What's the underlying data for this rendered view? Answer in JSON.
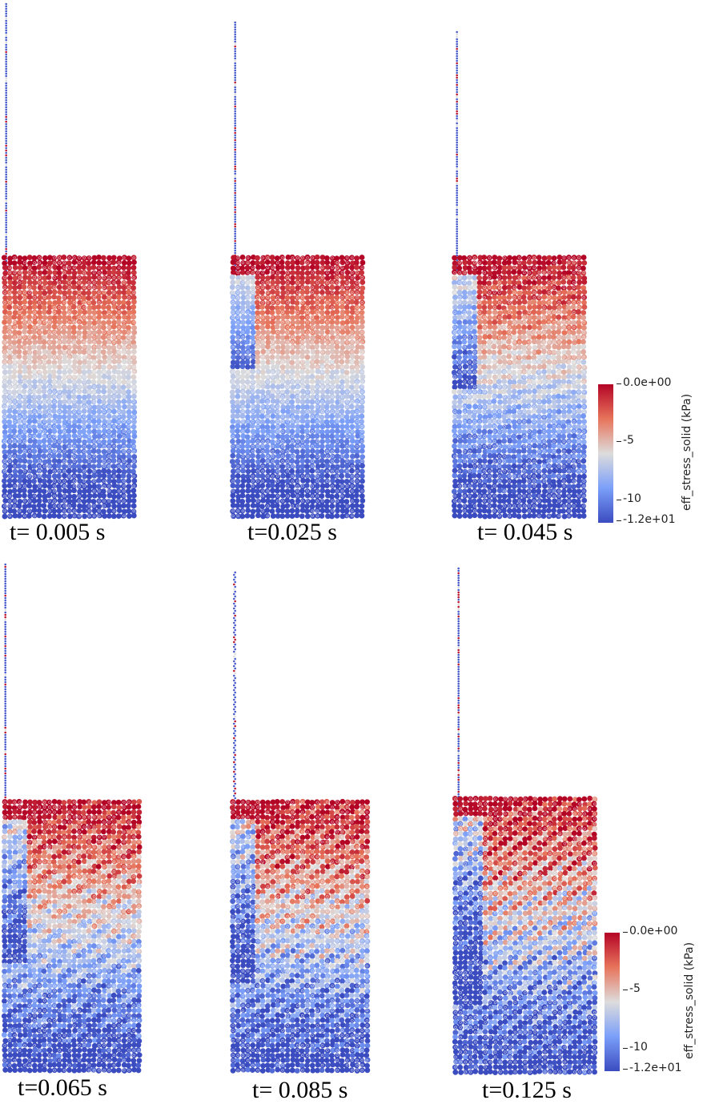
{
  "panels": [
    {
      "time_label": "t= 0.005 s",
      "stage": 0
    },
    {
      "time_label": "t=0.025 s",
      "stage": 1
    },
    {
      "time_label": "t= 0.045 s",
      "stage": 2
    },
    {
      "time_label": "t=0.065 s",
      "stage": 3
    },
    {
      "time_label": "t= 0.085 s",
      "stage": 4
    },
    {
      "time_label": "t=0.125 s",
      "stage": 5
    }
  ],
  "colorbar": {
    "title": "eff_stress_solid (kPa)",
    "max_label": "0.0e+00",
    "mid_label": "-5",
    "low_label": "-10",
    "min_label": "-1.2e+01",
    "range": [
      -12,
      0
    ],
    "colormap": [
      "#3b4cc0",
      "#7b9ff9",
      "#dddcdc",
      "#e7745b",
      "#b40426"
    ]
  }
}
